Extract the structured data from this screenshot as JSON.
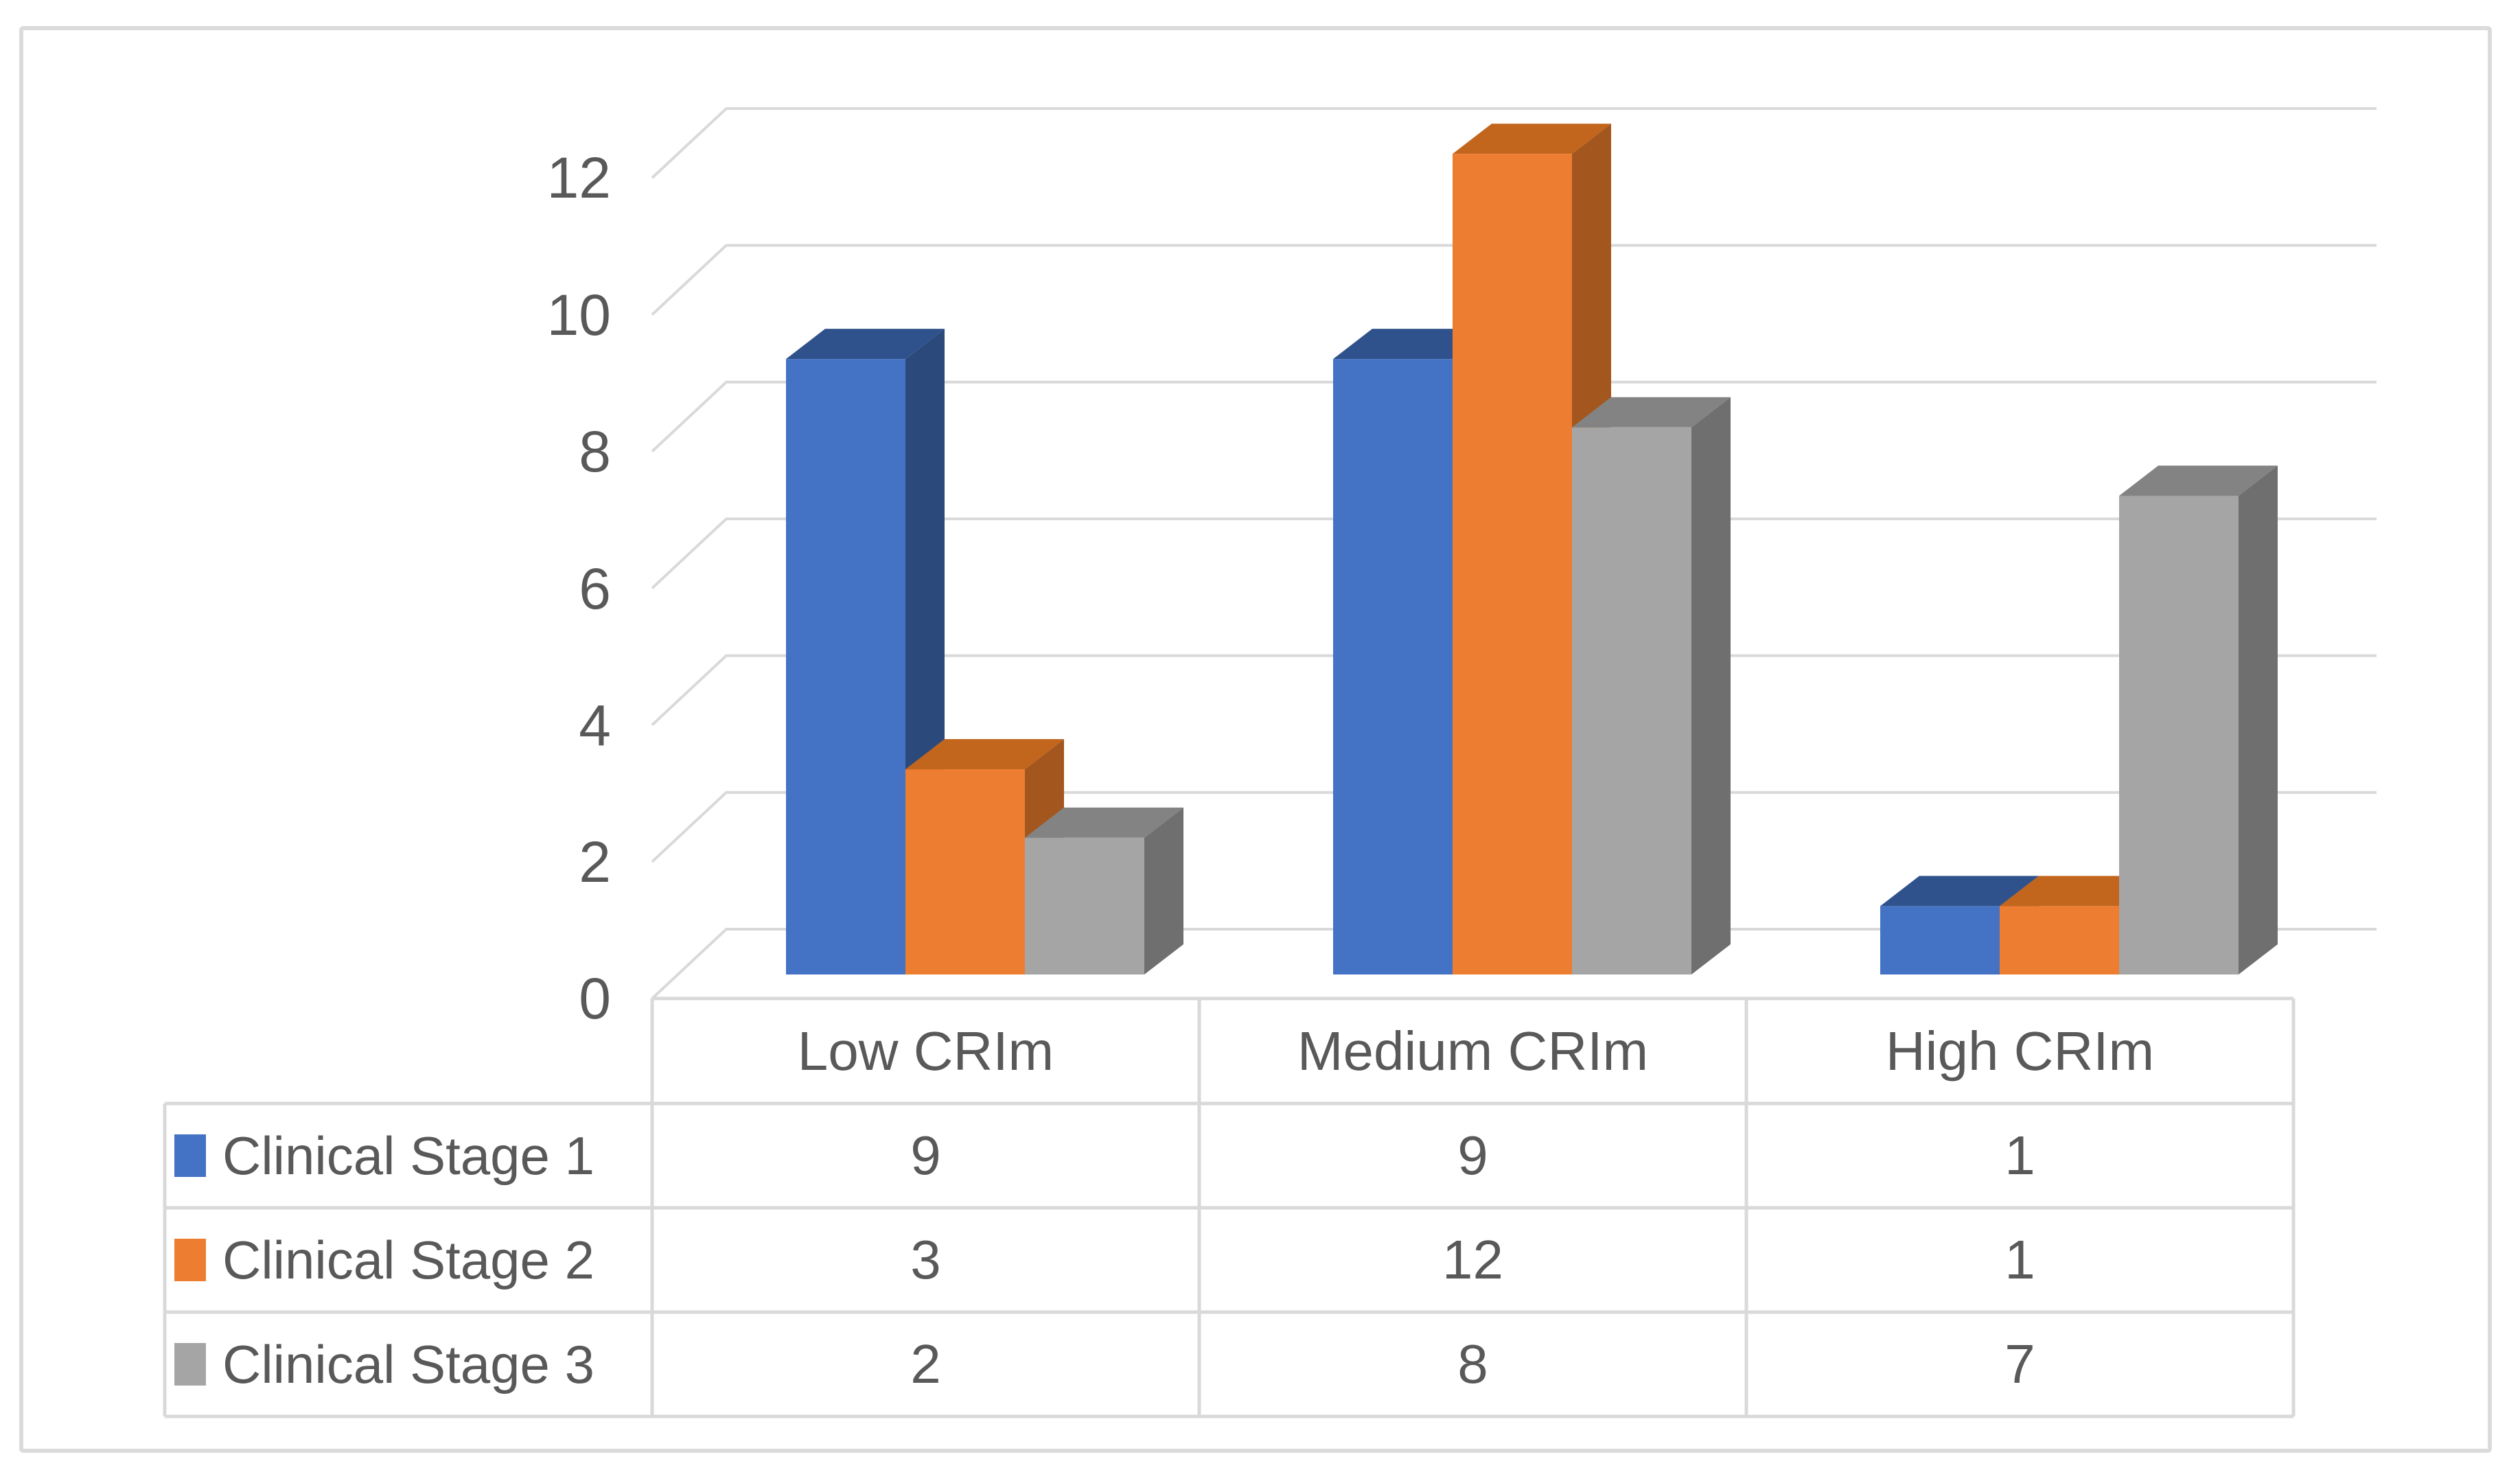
{
  "chart_data": {
    "type": "bar",
    "variant": "3d-clustered-column",
    "title": "",
    "categories": [
      "Low CRIm",
      "Medium CRIm",
      "High CRIm"
    ],
    "series": [
      {
        "name": "Clinical Stage 1",
        "color": "#4472C4",
        "values": [
          9,
          9,
          1
        ]
      },
      {
        "name": "Clinical Stage 2",
        "color": "#ED7D31",
        "values": [
          3,
          12,
          1
        ]
      },
      {
        "name": "Clinical Stage 3",
        "color": "#A5A5A5",
        "values": [
          2,
          8,
          7
        ]
      }
    ],
    "y_ticks": [
      "0",
      "2",
      "4",
      "6",
      "8",
      "10",
      "12"
    ],
    "ylim": [
      0,
      12
    ],
    "grid": true,
    "data_table_shown": true,
    "legend_position": "data-table-rows"
  },
  "colors": {
    "background": "#FFFFFF",
    "text": "#595959",
    "gridline": "#D9D9D9",
    "table_border": "#D9D9D9",
    "frame_border": "#DBDBDB",
    "series_front": [
      "#4472C4",
      "#ED7D31",
      "#A5A5A5"
    ],
    "series_top": [
      "#30528C",
      "#C2661D",
      "#838383"
    ],
    "series_side": [
      "#2B4A7B",
      "#A3571F",
      "#6F6F6F"
    ]
  }
}
